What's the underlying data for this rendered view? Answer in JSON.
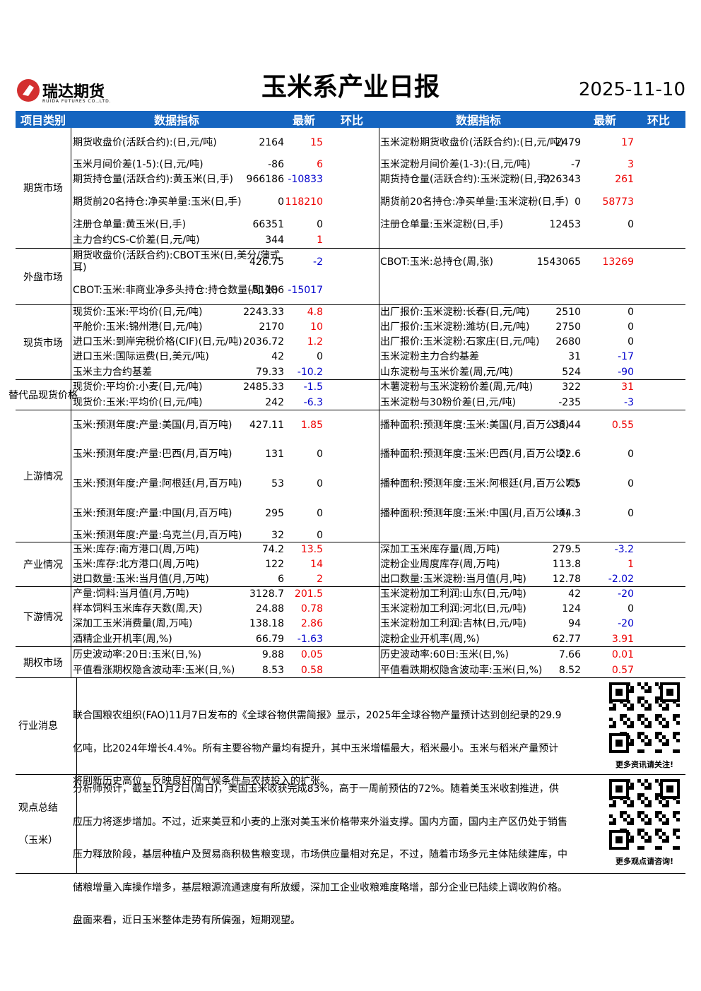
{
  "header": {
    "brand": "瑞达期货",
    "brand_en": "RUIDA FUTURES CO.,LTD.",
    "title": "玉米系产业日报",
    "date": "2025-11-10"
  },
  "columns": [
    "项目类别",
    "数据指标",
    "最新",
    "环比",
    "数据指标",
    "最新",
    "环比"
  ],
  "sections": [
    {
      "category": "期货市场",
      "rows": [
        {
          "left": {
            "name": "期货收盘价(活跃合约):(日,元/吨)",
            "latest": 2164,
            "change": 15
          },
          "right": {
            "name": "玉米淀粉期货收盘价(活跃合约):(日,元/吨)",
            "latest": 2479,
            "change": 17
          }
        },
        {
          "left": {
            "name": "玉米月间价差(1-5):(日,元/吨)",
            "latest": -86,
            "change": 6
          },
          "right": {
            "name": "玉米淀粉月间价差(1-3):(日,元/吨)",
            "latest": -7,
            "change": 3
          }
        },
        {
          "left": {
            "name": "期货持仓量(活跃合约):黄玉米(日,手)",
            "latest": 966186,
            "change": -10833
          },
          "right": {
            "name": "期货持仓量(活跃合约):玉米淀粉(日,手)",
            "latest": 226343,
            "change": 261
          }
        },
        {
          "left": {
            "name": "期货前20名持仓:净买单量:玉米(日,手)",
            "latest": 0,
            "change": 118210
          },
          "right": {
            "name": "期货前20名持仓:净买单量:玉米淀粉(日,手)",
            "latest": 0,
            "change": 58773
          }
        },
        {
          "left": {
            "name": "注册仓单量:黄玉米(日,手)",
            "latest": 66351,
            "change": 0
          },
          "right": {
            "name": "注册仓单量:玉米淀粉(日,手)",
            "latest": 12453,
            "change": 0
          }
        },
        {
          "left": {
            "name": "主力合约CS-C价差(日,元/吨)",
            "latest": 344,
            "change": 1
          },
          "right": null
        }
      ]
    },
    {
      "category": "外盘市场",
      "rows": [
        {
          "left": {
            "name": "期货收盘价(活跃合约):CBOT玉米(日,美分/蒲式耳)",
            "latest": 426.75,
            "change": -2
          },
          "right": {
            "name": "CBOT:玉米:总持仓(周,张)",
            "latest": 1543065,
            "change": 13269
          }
        },
        {
          "left": {
            "name": "CBOT:玉米:非商业净多头持仓:持仓数量(周,张)",
            "latest": -51186,
            "change": -15017
          },
          "right": null
        }
      ]
    },
    {
      "category": "现货市场",
      "rows": [
        {
          "left": {
            "name": "现货价:玉米:平均价(日,元/吨)",
            "latest": 2243.33,
            "change": 4.8
          },
          "right": {
            "name": "出厂报价:玉米淀粉:长春(日,元/吨)",
            "latest": 2510,
            "change": 0
          }
        },
        {
          "left": {
            "name": "平舱价:玉米:锦州港(日,元/吨)",
            "latest": 2170,
            "change": 10
          },
          "right": {
            "name": "出厂报价:玉米淀粉:潍坊(日,元/吨)",
            "latest": 2750,
            "change": 0
          }
        },
        {
          "left": {
            "name": "进口玉米:到岸完税价格(CIF)(日,元/吨)",
            "latest": 2036.72,
            "change": 1.2
          },
          "right": {
            "name": "出厂报价:玉米淀粉:石家庄(日,元/吨)",
            "latest": 2680,
            "change": 0
          }
        },
        {
          "left": {
            "name": "进口玉米:国际运费(日,美元/吨)",
            "latest": 42,
            "change": 0
          },
          "right": {
            "name": "玉米淀粉主力合约基差",
            "latest": 31,
            "change": -17
          }
        },
        {
          "left": {
            "name": "玉米主力合约基差",
            "latest": 79.33,
            "change": -10.2
          },
          "right": {
            "name": "山东淀粉与玉米价差(周,元/吨)",
            "latest": 524,
            "change": -90
          }
        }
      ]
    },
    {
      "category": "替代品现货价格",
      "rows": [
        {
          "left": {
            "name": "现货价:平均价:小麦(日,元/吨)",
            "latest": 2485.33,
            "change": -1.5
          },
          "right": {
            "name": "木薯淀粉与玉米淀粉价差(周,元/吨)",
            "latest": 322,
            "change": 31
          }
        },
        {
          "left": {
            "name": "现货价:玉米:平均价(日,元/吨)",
            "latest": 242,
            "change": -6.3
          },
          "right": {
            "name": "玉米淀粉与30粉价差(日,元/吨)",
            "latest": -235,
            "change": -3
          }
        }
      ]
    },
    {
      "category": "上游情况",
      "rows": [
        {
          "left": {
            "name": "玉米:预测年度:产量:美国(月,百万吨)",
            "latest": 427.11,
            "change": 1.85
          },
          "right": {
            "name": "播种面积:预测年度:玉米:美国(月,百万公顷)",
            "latest": 36.44,
            "change": 0.55
          }
        },
        {
          "left": {
            "name": "玉米:预测年度:产量:巴西(月,百万吨)",
            "latest": 131,
            "change": 0
          },
          "right": {
            "name": "播种面积:预测年度:玉米:巴西(月,百万公顷)",
            "latest": 22.6,
            "change": 0
          }
        },
        {
          "left": {
            "name": "玉米:预测年度:产量:阿根廷(月,百万吨)",
            "latest": 53,
            "change": 0
          },
          "right": {
            "name": "播种面积:预测年度:玉米:阿根廷(月,百万公顷)",
            "latest": 7.5,
            "change": 0
          }
        },
        {
          "left": {
            "name": "玉米:预测年度:产量:中国(月,百万吨)",
            "latest": 295,
            "change": 0
          },
          "right": {
            "name": "播种面积:预测年度:玉米:中国(月,百万公顷)",
            "latest": 44.3,
            "change": 0
          }
        },
        {
          "left": {
            "name": "玉米:预测年度:产量:乌克兰(月,百万吨)",
            "latest": 32,
            "change": 0
          },
          "right": null
        }
      ]
    },
    {
      "category": "产业情况",
      "rows": [
        {
          "left": {
            "name": "玉米:库存:南方港口(周,万吨)",
            "latest": 74.2,
            "change": 13.5
          },
          "right": {
            "name": "深加工玉米库存量(周,万吨)",
            "latest": 279.5,
            "change": -3.2
          }
        },
        {
          "left": {
            "name": "玉米:库存:北方港口(周,万吨)",
            "latest": 122,
            "change": 14
          },
          "right": {
            "name": "淀粉企业周度库存(周,万吨)",
            "latest": 113.8,
            "change": 1
          }
        },
        {
          "left": {
            "name": "进口数量:玉米:当月值(月,万吨)",
            "latest": 6,
            "change": 2
          },
          "right": {
            "name": "出口数量:玉米淀粉:当月值(月,吨)",
            "latest": 12.78,
            "change": -2.02
          }
        }
      ]
    },
    {
      "category": "下游情况",
      "rows": [
        {
          "left": {
            "name": "产量:饲料:当月值(月,万吨)",
            "latest": 3128.7,
            "change": 201.5
          },
          "right": {
            "name": "玉米淀粉加工利润:山东(日,元/吨)",
            "latest": 42,
            "change": -20
          }
        },
        {
          "left": {
            "name": "样本饲料玉米库存天数(周,天)",
            "latest": 24.88,
            "change": 0.78
          },
          "right": {
            "name": "玉米淀粉加工利润:河北(日,元/吨)",
            "latest": 124,
            "change": 0
          }
        },
        {
          "left": {
            "name": "深加工玉米消费量(周,万吨)",
            "latest": 138.18,
            "change": 2.86
          },
          "right": {
            "name": "玉米淀粉加工利润:吉林(日,元/吨)",
            "latest": 94,
            "change": -20
          }
        },
        {
          "left": {
            "name": "酒精企业开机率(周,%)",
            "latest": 66.79,
            "change": -1.63
          },
          "right": {
            "name": "淀粉企业开机率(周,%)",
            "latest": 62.77,
            "change": 3.91
          }
        }
      ]
    },
    {
      "category": "期权市场",
      "rows": [
        {
          "left": {
            "name": "历史波动率:20日:玉米(日,%)",
            "latest": 9.88,
            "change": 0.05
          },
          "right": {
            "name": "历史波动率:60日:玉米(日,%)",
            "latest": 7.66,
            "change": 0.01
          }
        },
        {
          "left": {
            "name": "平值看涨期权隐含波动率:玉米(日,%)",
            "latest": 8.53,
            "change": 0.58
          },
          "right": {
            "name": "平值看跌期权隐含波动率:玉米(日,%)",
            "latest": 8.52,
            "change": 0.57
          }
        }
      ]
    }
  ],
  "news": {
    "category": "行业消息",
    "text": "联合国粮农组织(FAO)11月7日发布的《全球谷物供需简报》显示，2025年全球谷物产量预计达到创纪录的29.9亿吨，比2024年增长4.4%。所有主要谷物产量均有提升，其中玉米增幅最大，稻米最小。玉米与稻米产量预计将刷新历史高位，反映良好的气候条件与农技投入的扩张。",
    "qr_caption": "更多资讯请关注!"
  },
  "view": {
    "category": "观点总结（玉米）",
    "text": "分析师预计，截至11月2日(周日)，美国玉米收获完成83%，高于一周前预估的72%。随着美玉米收割推进，供应压力将逐步增加。不过，近来美豆和小麦的上涨对美玉米价格带来外溢支撑。国内方面，国内主产区仍处于销售压力释放阶段，基层种植户及贸易商积极售粮变现，市场供应量相对充足，不过，随着市场多元主体陆续建库，中储粮增量入库操作增多，基层粮源流通速度有所放缓，深加工企业收粮难度略增，部分企业已陆续上调收购价格。盘面来看，近日玉米整体走势有所偏强，短期观望。",
    "qr_caption": "更多观点请咨询!"
  }
}
